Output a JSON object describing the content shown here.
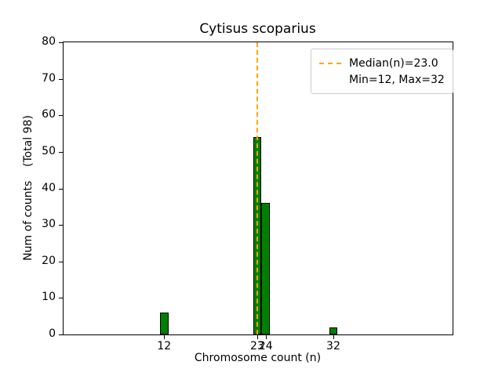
{
  "figure": {
    "title": "Cytisus scoparius"
  },
  "axes": {
    "xlabel": "Chromosome count (n)",
    "ylabel": "Num of counts    (Total 98)"
  },
  "legend": {
    "items": [
      {
        "label": "Median(n)=23.0",
        "sample": "dashed-line",
        "color": "#ffa500"
      },
      {
        "label": "Min=12, Max=32",
        "sample": "none"
      }
    ]
  },
  "chart_data": {
    "type": "bar",
    "title": "Cytisus scoparius",
    "xlabel": "Chromosome count (n)",
    "ylabel": "Num of counts    (Total 98)",
    "x": [
      12,
      23,
      24,
      32
    ],
    "values": [
      6,
      54,
      36,
      2
    ],
    "total_counts": 98,
    "median": 23.0,
    "min": 12,
    "max": 32,
    "bar_width": 1,
    "bar_color": "#008000",
    "bar_edge_color": "#000000",
    "median_line_color": "#ffa500",
    "median_line_style": "dashed",
    "xlim": [
      0.1,
      46.1
    ],
    "xticks": [
      12,
      23,
      24,
      32
    ],
    "ylim": [
      0,
      80
    ],
    "yticks": [
      0,
      10,
      20,
      30,
      40,
      50,
      60,
      70,
      80
    ],
    "grid": false,
    "legend_position": "upper right"
  }
}
